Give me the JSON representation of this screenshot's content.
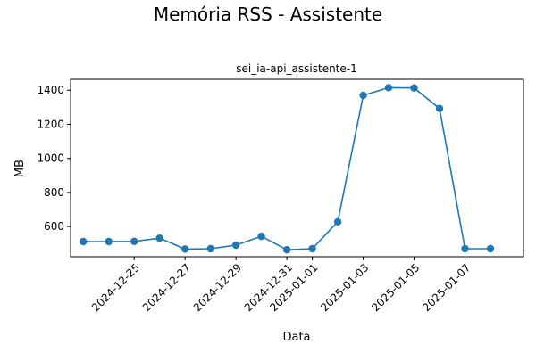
{
  "figure": {
    "suptitle": "Memória RSS - Assistente"
  },
  "chart_data": {
    "type": "line",
    "title": "sei_ia-api_assistente-1",
    "xlabel": "Data",
    "ylabel": "MB",
    "x": [
      "2024-12-23",
      "2024-12-24",
      "2024-12-25",
      "2024-12-26",
      "2024-12-27",
      "2024-12-28",
      "2024-12-29",
      "2024-12-30",
      "2024-12-31",
      "2025-01-01",
      "2025-01-02",
      "2025-01-03",
      "2025-01-04",
      "2025-01-05",
      "2025-01-06",
      "2025-01-07",
      "2025-01-08"
    ],
    "series": [
      {
        "name": "",
        "values": [
          512,
          512,
          513,
          532,
          468,
          470,
          491,
          543,
          464,
          470,
          628,
          1370,
          1415,
          1413,
          1293,
          470,
          470
        ],
        "color": "#1f77b4"
      }
    ],
    "xticks": [
      "2024-12-25",
      "2024-12-27",
      "2024-12-29",
      "2024-12-31",
      "2025-01-01",
      "2025-01-03",
      "2025-01-05",
      "2025-01-07"
    ],
    "yticks": [
      600,
      800,
      1000,
      1200,
      1400
    ],
    "ylim": [
      423,
      1464
    ],
    "xlim": [
      "2024-12-22",
      "2025-01-08"
    ],
    "grid": false,
    "legend": "none"
  }
}
